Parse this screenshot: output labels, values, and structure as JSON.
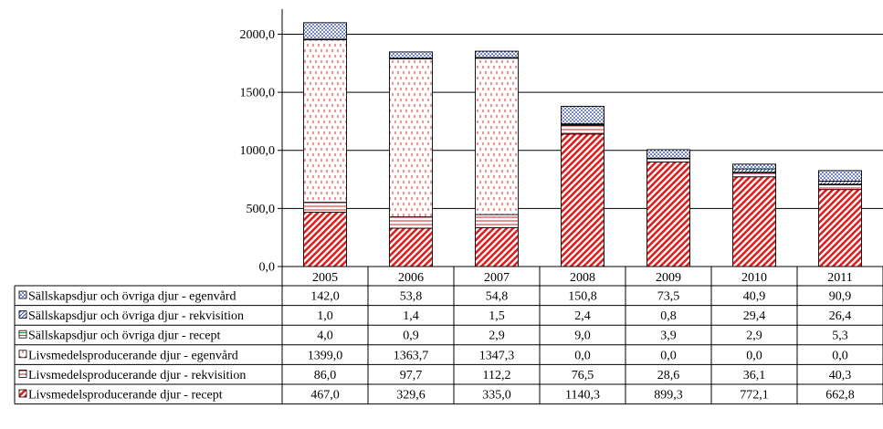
{
  "chart_data": {
    "type": "bar",
    "stacked": true,
    "categories": [
      "2005",
      "2006",
      "2007",
      "2008",
      "2009",
      "2010",
      "2011"
    ],
    "ylim": [
      0,
      2200
    ],
    "ytick_labels": [
      "0,0",
      "500,0",
      "1000,0",
      "1500,0",
      "2000,0"
    ],
    "ytick_values": [
      0,
      500,
      1000,
      1500,
      2000
    ],
    "grid": true,
    "legend": "data-table-left",
    "series": [
      {
        "name": "Livsmedelsproducerande djur - recept",
        "values": [
          467.0,
          329.6,
          335.0,
          1140.3,
          899.3,
          772.1,
          662.8
        ],
        "labels": [
          "467,0",
          "329,6",
          "335,0",
          "1140,3",
          "899,3",
          "772,1",
          "662,8"
        ],
        "color": "#e02020",
        "pattern": "diagonal-hatch"
      },
      {
        "name": "Livsmedelsproducerande djur - rekvisition",
        "values": [
          86.0,
          97.7,
          112.2,
          76.5,
          28.6,
          36.1,
          40.3
        ],
        "labels": [
          "86,0",
          "97,7",
          "112,2",
          "76,5",
          "28,6",
          "36,1",
          "40,3"
        ],
        "color": "#d02020",
        "pattern": "horizontal-lines"
      },
      {
        "name": "Livsmedelsproducerande djur - egenvård",
        "values": [
          1399.0,
          1363.7,
          1347.3,
          0.0,
          0.0,
          0.0,
          0.0
        ],
        "labels": [
          "1399,0",
          "1363,7",
          "1347,3",
          "0,0",
          "0,0",
          "0,0",
          "0,0"
        ],
        "color": "#e04040",
        "pattern": "dashed-vertical"
      },
      {
        "name": "Sällskapsdjur och övriga djur - recept",
        "values": [
          4.0,
          0.9,
          2.9,
          9.0,
          3.9,
          2.9,
          5.3
        ],
        "labels": [
          "4,0",
          "0,9",
          "2,9",
          "9,0",
          "3,9",
          "2,9",
          "5,3"
        ],
        "color": "#20a020",
        "pattern": "horizontal-lines"
      },
      {
        "name": "Sällskapsdjur och övriga djur - rekvisition",
        "values": [
          1.0,
          1.4,
          1.5,
          2.4,
          0.8,
          29.4,
          26.4
        ],
        "labels": [
          "1,0",
          "1,4",
          "1,5",
          "2,4",
          "0,8",
          "29,4",
          "26,4"
        ],
        "color": "#2040a0",
        "pattern": "diagonal-hatch"
      },
      {
        "name": "Sällskapsdjur och övriga djur - egenvård",
        "values": [
          142.0,
          53.8,
          54.8,
          150.8,
          73.5,
          40.9,
          90.9
        ],
        "labels": [
          "142,0",
          "53,8",
          "54,8",
          "150,8",
          "73,5",
          "40,9",
          "90,9"
        ],
        "color": "#1030a0",
        "pattern": "dots"
      }
    ]
  }
}
